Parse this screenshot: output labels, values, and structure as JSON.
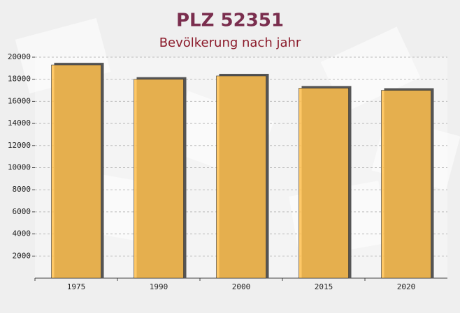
{
  "chart_data": {
    "type": "bar",
    "title": "PLZ 52351",
    "subtitle": "Bevölkerung nach jahr",
    "categories": [
      "1975",
      "1990",
      "2000",
      "2015",
      "2020"
    ],
    "values": [
      19300,
      18000,
      18300,
      17200,
      17000
    ],
    "color": "#ffc04d",
    "ylim": [
      0,
      20000
    ],
    "yticks": [
      2000,
      4000,
      6000,
      8000,
      10000,
      12000,
      14000,
      16000,
      18000,
      20000
    ],
    "grid": true
  }
}
